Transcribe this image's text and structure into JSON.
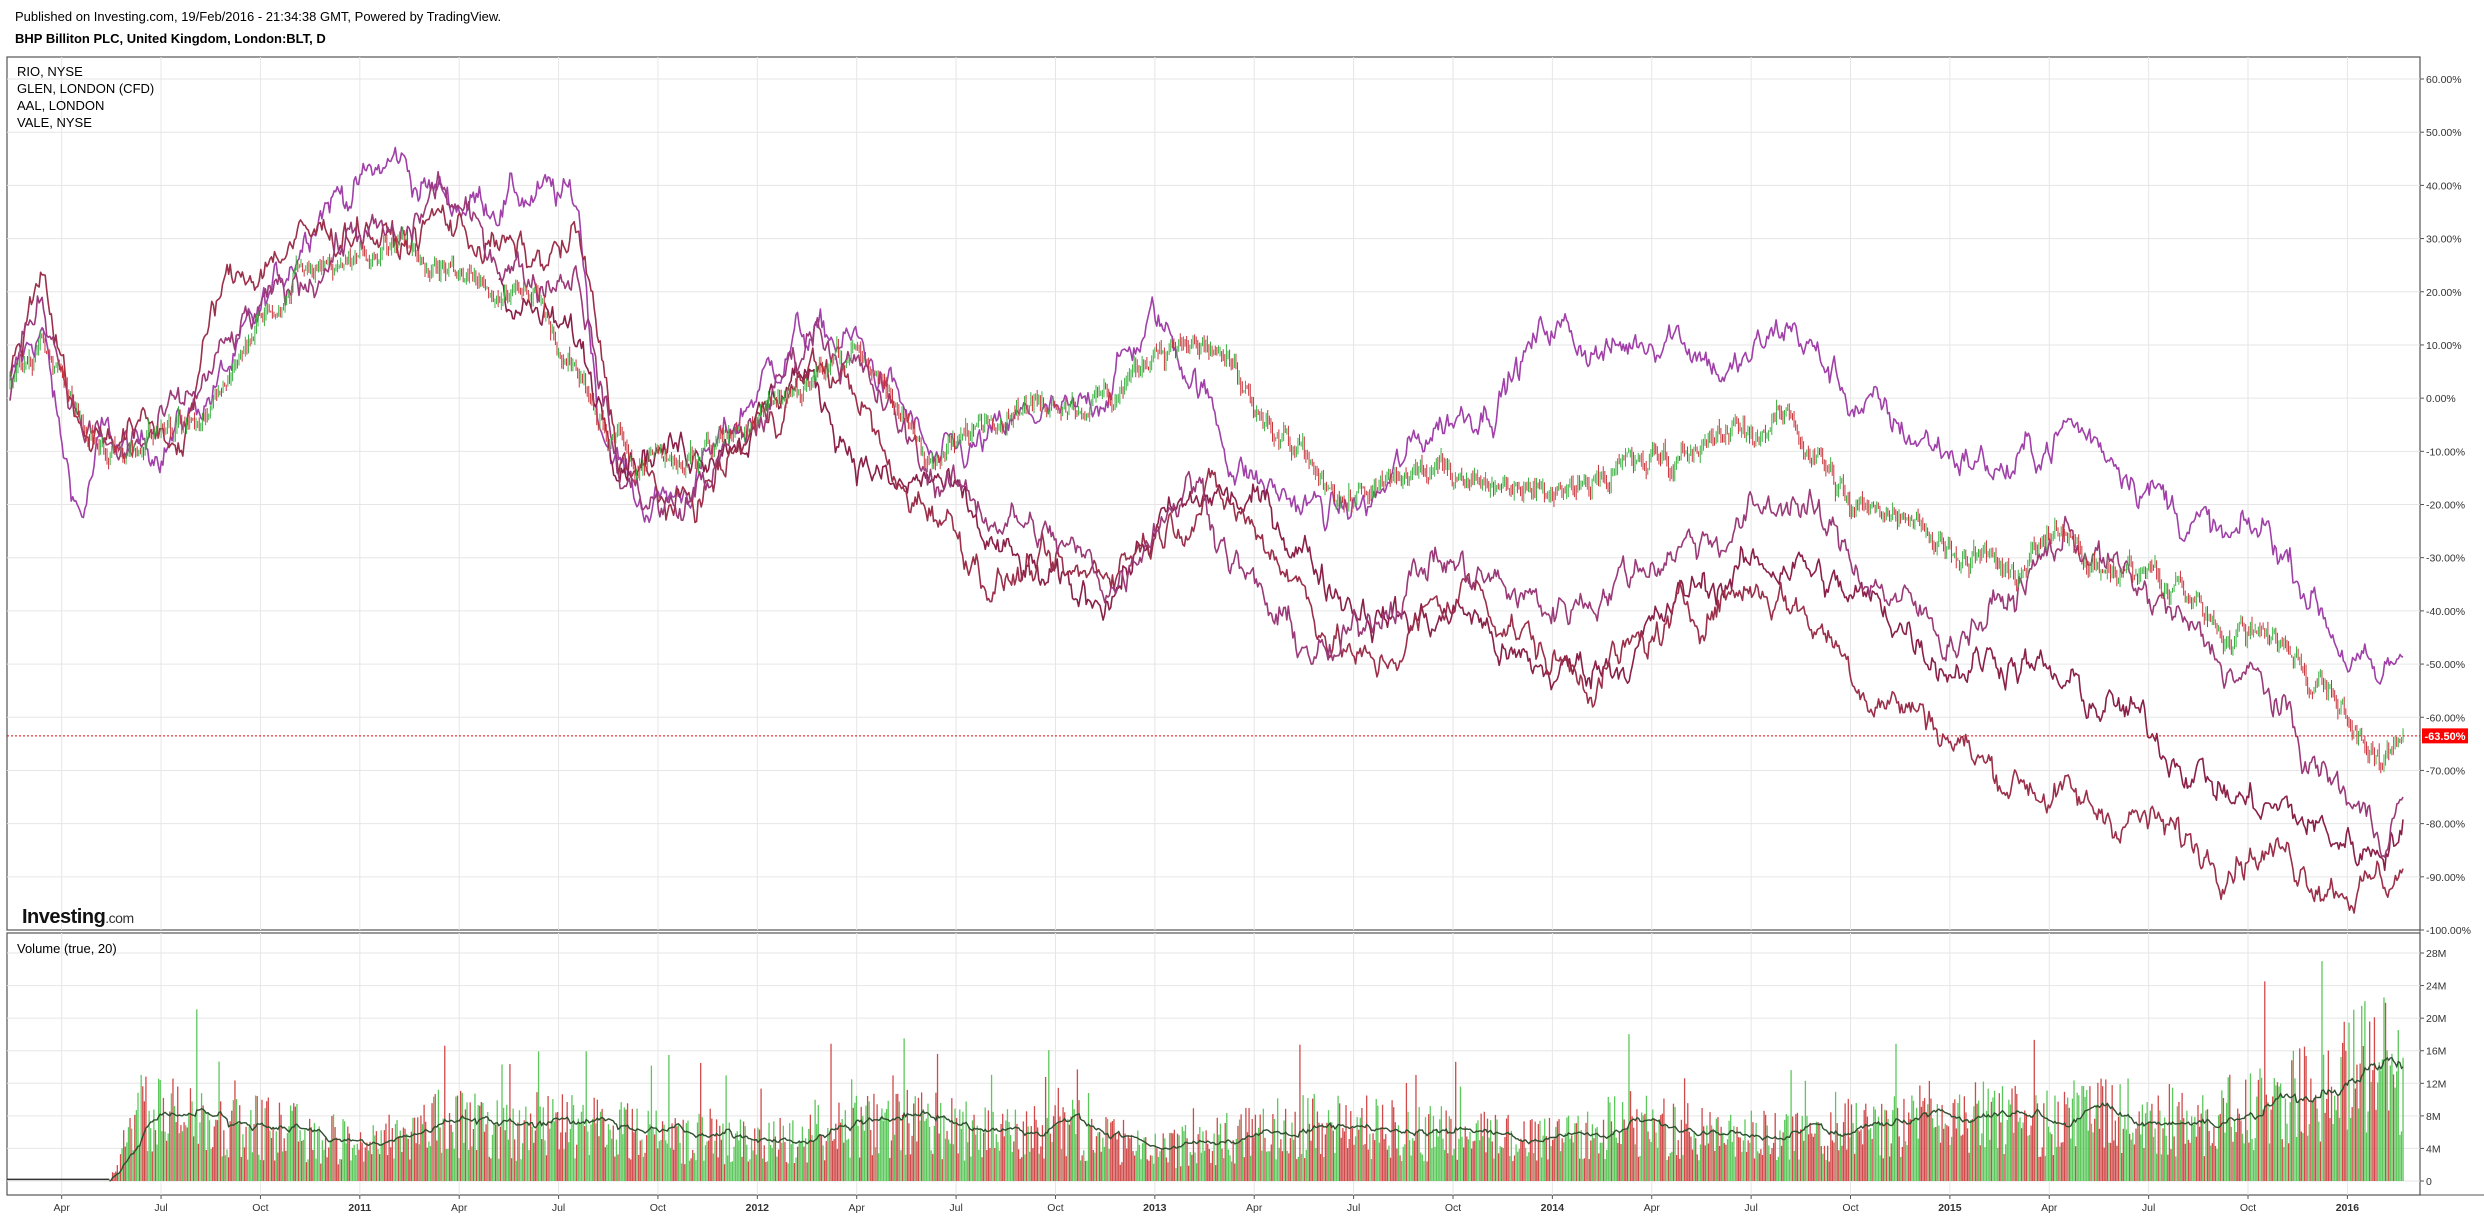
{
  "header": {
    "published": "Published on Investing.com, 19/Feb/2016 - 21:34:38 GMT, Powered by TradingView.",
    "symbol_title": "BHP Billiton PLC, United Kingdom, London:BLT, D"
  },
  "legend": [
    "RIO, NYSE",
    "GLEN, LONDON (CFD)",
    "AAL, LONDON",
    "VALE, NYSE"
  ],
  "watermark": {
    "brand": "Investing",
    "suffix": ".com"
  },
  "volume_label": "Volume (true, 20)",
  "last_value_label": "-63.50%",
  "colors": {
    "background": "#ffffff",
    "grid": "#e6e6e6",
    "axis_text": "#333333",
    "candle_up": "#3cb043",
    "candle_down": "#c8343c",
    "series_purple": "#a040a8",
    "series_darkred": "#9c2f4a",
    "series_wine": "#8a2048",
    "series_plum": "#9a3a78",
    "volume_up": "#5cc85c",
    "volume_down": "#d04a4a",
    "volume_ma": "#2f4f2f",
    "last_price_line": "#e01010",
    "last_price_badge": "#ff0000"
  },
  "chart_data": [
    {
      "type": "line",
      "title": "BHP Billiton PLC, United Kingdom, London:BLT, D",
      "y_axis": {
        "unit": "%",
        "ylim": [
          -100,
          62
        ],
        "ticks": [
          "60.00%",
          "50.00%",
          "40.00%",
          "30.00%",
          "20.00%",
          "10.00%",
          "0.00%",
          "-10.00%",
          "-20.00%",
          "-30.00%",
          "-40.00%",
          "-50.00%",
          "-60.00%",
          "-70.00%",
          "-80.00%",
          "-90.00%",
          "-100.00%"
        ],
        "tick_values": [
          60,
          50,
          40,
          30,
          20,
          10,
          0,
          -10,
          -20,
          -30,
          -40,
          -50,
          -60,
          -70,
          -80,
          -90,
          -100
        ],
        "side": "right"
      },
      "x_axis": {
        "range": [
          2010.12,
          2016.16
        ],
        "ticks": [
          {
            "label": "Apr",
            "t": 2010.25,
            "bold": false
          },
          {
            "label": "Jul",
            "t": 2010.5,
            "bold": false
          },
          {
            "label": "Oct",
            "t": 2010.75,
            "bold": false
          },
          {
            "label": "2011",
            "t": 2011.0,
            "bold": true
          },
          {
            "label": "Apr",
            "t": 2011.25,
            "bold": false
          },
          {
            "label": "Jul",
            "t": 2011.5,
            "bold": false
          },
          {
            "label": "Oct",
            "t": 2011.75,
            "bold": false
          },
          {
            "label": "2012",
            "t": 2012.0,
            "bold": true
          },
          {
            "label": "Apr",
            "t": 2012.25,
            "bold": false
          },
          {
            "label": "Jul",
            "t": 2012.5,
            "bold": false
          },
          {
            "label": "Oct",
            "t": 2012.75,
            "bold": false
          },
          {
            "label": "2013",
            "t": 2013.0,
            "bold": true
          },
          {
            "label": "Apr",
            "t": 2013.25,
            "bold": false
          },
          {
            "label": "Jul",
            "t": 2013.5,
            "bold": false
          },
          {
            "label": "Oct",
            "t": 2013.75,
            "bold": false
          },
          {
            "label": "2014",
            "t": 2014.0,
            "bold": true
          },
          {
            "label": "Apr",
            "t": 2014.25,
            "bold": false
          },
          {
            "label": "Jul",
            "t": 2014.5,
            "bold": false
          },
          {
            "label": "Oct",
            "t": 2014.75,
            "bold": false
          },
          {
            "label": "2015",
            "t": 2015.0,
            "bold": true
          },
          {
            "label": "Apr",
            "t": 2015.25,
            "bold": false
          },
          {
            "label": "Jul",
            "t": 2015.5,
            "bold": false
          },
          {
            "label": "Oct",
            "t": 2015.75,
            "bold": false
          },
          {
            "label": "2016",
            "t": 2016.0,
            "bold": true
          }
        ]
      },
      "last_value": -63.5,
      "grid": true,
      "legend_position": "top-left",
      "series": [
        {
          "name": "BLT",
          "style": "candles",
          "x": [
            2010.12,
            2010.2,
            2010.3,
            2010.4,
            2010.5,
            2010.6,
            2010.75,
            2010.9,
            2011.0,
            2011.1,
            2011.2,
            2011.3,
            2011.45,
            2011.55,
            2011.65,
            2011.8,
            2011.95,
            2012.1,
            2012.25,
            2012.35,
            2012.45,
            2012.6,
            2012.75,
            2012.85,
            2013.0,
            2013.15,
            2013.3,
            2013.45,
            2013.55,
            2013.7,
            2013.85,
            2014.0,
            2014.15,
            2014.3,
            2014.45,
            2014.6,
            2014.75,
            2014.9,
            2015.0,
            2015.15,
            2015.3,
            2015.4,
            2015.5,
            2015.6,
            2015.7,
            2015.8,
            2015.9,
            2016.0,
            2016.08,
            2016.14
          ],
          "y": [
            2,
            10,
            -5,
            -10,
            -5,
            -6,
            16,
            24,
            27,
            29,
            24,
            22,
            18,
            3,
            -10,
            -12,
            -6,
            2,
            10,
            -2,
            -12,
            -2,
            -1,
            -2,
            10,
            10,
            -8,
            -18,
            -19,
            -12,
            -15,
            -17,
            -13,
            -10,
            -7,
            -4,
            -20,
            -22,
            -28,
            -32,
            -24,
            -33,
            -32,
            -38,
            -45,
            -43,
            -52,
            -60,
            -70,
            -64
          ]
        },
        {
          "name": "RIO, NYSE",
          "style": "line",
          "x": [
            2010.12,
            2010.2,
            2010.25,
            2010.3,
            2010.35,
            2010.45,
            2010.55,
            2010.7,
            2010.8,
            2010.9,
            2011.0,
            2011.1,
            2011.15,
            2011.25,
            2011.35,
            2011.45,
            2011.55,
            2011.6,
            2011.7,
            2011.8,
            2011.9,
            2012.0,
            2012.1,
            2012.25,
            2012.35,
            2012.45,
            2012.6,
            2012.7,
            2012.8,
            2012.9,
            2013.0,
            2013.1,
            2013.2,
            2013.3,
            2013.45,
            2013.55,
            2013.7,
            2013.85,
            2014.0,
            2014.15,
            2014.3,
            2014.45,
            2014.6,
            2014.75,
            2014.85,
            2015.0,
            2015.15,
            2015.3,
            2015.45,
            2015.55,
            2015.7,
            2015.8,
            2015.9,
            2016.0,
            2016.08,
            2016.14
          ],
          "y": [
            2,
            14,
            -10,
            -22,
            -8,
            -10,
            -5,
            8,
            22,
            38,
            40,
            45,
            40,
            37,
            38,
            38,
            36,
            -2,
            -20,
            -18,
            -10,
            2,
            12,
            10,
            0,
            -14,
            -8,
            -3,
            -5,
            5,
            15,
            5,
            -12,
            -18,
            -22,
            -20,
            -5,
            0,
            14,
            8,
            14,
            4,
            14,
            0,
            -5,
            -10,
            -14,
            -5,
            -12,
            -20,
            -28,
            -25,
            -35,
            -48,
            -55,
            -47
          ]
        },
        {
          "name": "GLEN, LONDON (CFD)",
          "style": "line",
          "x": [
            2011.35,
            2011.45,
            2011.55,
            2011.65,
            2011.8,
            2012.0,
            2012.1,
            2012.25,
            2012.35,
            2012.45,
            2012.55,
            2012.65,
            2012.8,
            2012.9,
            2013.0,
            2013.15,
            2013.3,
            2013.45,
            2013.55,
            2013.65,
            2013.8,
            2013.9,
            2014.0,
            2014.1,
            2014.2,
            2014.35,
            2014.5,
            2014.6,
            2014.75,
            2014.85,
            2015.0,
            2015.15,
            2015.3,
            2015.45,
            2015.6,
            2015.7,
            2015.85,
            2015.95,
            2016.05,
            2016.14
          ],
          "y": [
            22,
            15,
            10,
            -8,
            -10,
            -5,
            6,
            -10,
            -18,
            -15,
            -25,
            -32,
            -38,
            -35,
            -25,
            -18,
            -22,
            -35,
            -40,
            -42,
            -40,
            -50,
            -52,
            -50,
            -48,
            -36,
            -32,
            -30,
            -38,
            -40,
            -50,
            -48,
            -55,
            -60,
            -68,
            -75,
            -78,
            -82,
            -85,
            -80
          ]
        },
        {
          "name": "AAL, LONDON",
          "style": "line",
          "x": [
            2010.12,
            2010.2,
            2010.3,
            2010.4,
            2010.55,
            2010.65,
            2010.8,
            2011.0,
            2011.1,
            2011.2,
            2011.3,
            2011.45,
            2011.55,
            2011.65,
            2011.8,
            2011.9,
            2012.0,
            2012.15,
            2012.25,
            2012.35,
            2012.45,
            2012.6,
            2012.7,
            2012.8,
            2012.95,
            2013.05,
            2013.15,
            2013.3,
            2013.45,
            2013.55,
            2013.7,
            2013.8,
            2014.0,
            2014.1,
            2014.2,
            2014.35,
            2014.5,
            2014.6,
            2014.7,
            2014.8,
            2014.95,
            2015.1,
            2015.2,
            2015.35,
            2015.45,
            2015.55,
            2015.65,
            2015.75,
            2015.85,
            2015.95,
            2016.05,
            2016.14
          ],
          "y": [
            3,
            26,
            -8,
            -5,
            -8,
            20,
            28,
            33,
            28,
            34,
            30,
            25,
            30,
            -10,
            -22,
            -15,
            -5,
            6,
            2,
            -18,
            -20,
            -35,
            -32,
            -35,
            -28,
            -22,
            -18,
            -28,
            -45,
            -52,
            -40,
            -35,
            -50,
            -52,
            -48,
            -40,
            -35,
            -38,
            -45,
            -55,
            -60,
            -70,
            -72,
            -78,
            -78,
            -82,
            -85,
            -84,
            -86,
            -90,
            -92,
            -89
          ]
        },
        {
          "name": "VALE, NYSE",
          "style": "line",
          "x": [
            2010.12,
            2010.2,
            2010.3,
            2010.4,
            2010.55,
            2010.7,
            2010.85,
            2011.0,
            2011.1,
            2011.2,
            2011.3,
            2011.45,
            2011.55,
            2011.65,
            2011.8,
            2011.9,
            2012.0,
            2012.15,
            2012.25,
            2012.35,
            2012.45,
            2012.55,
            2012.7,
            2012.8,
            2012.9,
            2013.0,
            2013.1,
            2013.2,
            2013.3,
            2013.45,
            2013.55,
            2013.7,
            2013.85,
            2014.0,
            2014.15,
            2014.3,
            2014.45,
            2014.6,
            2014.75,
            2014.9,
            2015.0,
            2015.15,
            2015.3,
            2015.45,
            2015.55,
            2015.65,
            2015.8,
            2015.9,
            2016.0,
            2016.08,
            2016.14
          ],
          "y": [
            2,
            20,
            -5,
            -12,
            -3,
            12,
            22,
            32,
            28,
            40,
            30,
            22,
            25,
            -15,
            -22,
            -12,
            -5,
            15,
            5,
            -5,
            -15,
            -20,
            -25,
            -30,
            -35,
            -22,
            -15,
            -30,
            -42,
            -50,
            -40,
            -30,
            -35,
            -40,
            -35,
            -28,
            -25,
            -18,
            -30,
            -40,
            -45,
            -38,
            -25,
            -35,
            -40,
            -48,
            -55,
            -68,
            -75,
            -82,
            -75
          ]
        }
      ]
    },
    {
      "type": "bar",
      "title": "Volume (true, 20)",
      "y_axis": {
        "ylim": [
          0,
          30
        ],
        "unit": "M",
        "ticks": [
          "28M",
          "24M",
          "20M",
          "16M",
          "12M",
          "8M",
          "4M",
          "0"
        ],
        "tick_values": [
          28,
          24,
          20,
          16,
          12,
          8,
          4,
          0
        ],
        "side": "right"
      },
      "volume_start": 2010.37,
      "volume_level_profile": {
        "x": [
          2010.37,
          2010.45,
          2010.6,
          2010.8,
          2011.0,
          2011.2,
          2011.4,
          2011.6,
          2011.8,
          2012.0,
          2012.2,
          2012.4,
          2012.6,
          2012.8,
          2013.0,
          2013.2,
          2013.4,
          2013.6,
          2013.8,
          2014.0,
          2014.2,
          2014.4,
          2014.6,
          2014.8,
          2015.0,
          2015.2,
          2015.4,
          2015.6,
          2015.8,
          2015.9,
          2016.0,
          2016.08,
          2016.14
        ],
        "y": [
          0,
          10,
          8,
          7,
          5,
          8,
          7,
          8,
          6,
          5,
          7,
          8,
          6,
          7,
          4,
          6,
          8,
          7,
          6,
          6,
          8,
          6,
          6,
          7,
          9,
          8,
          9,
          8,
          10,
          12,
          14,
          17,
          15
        ]
      },
      "ma_line": true
    }
  ]
}
